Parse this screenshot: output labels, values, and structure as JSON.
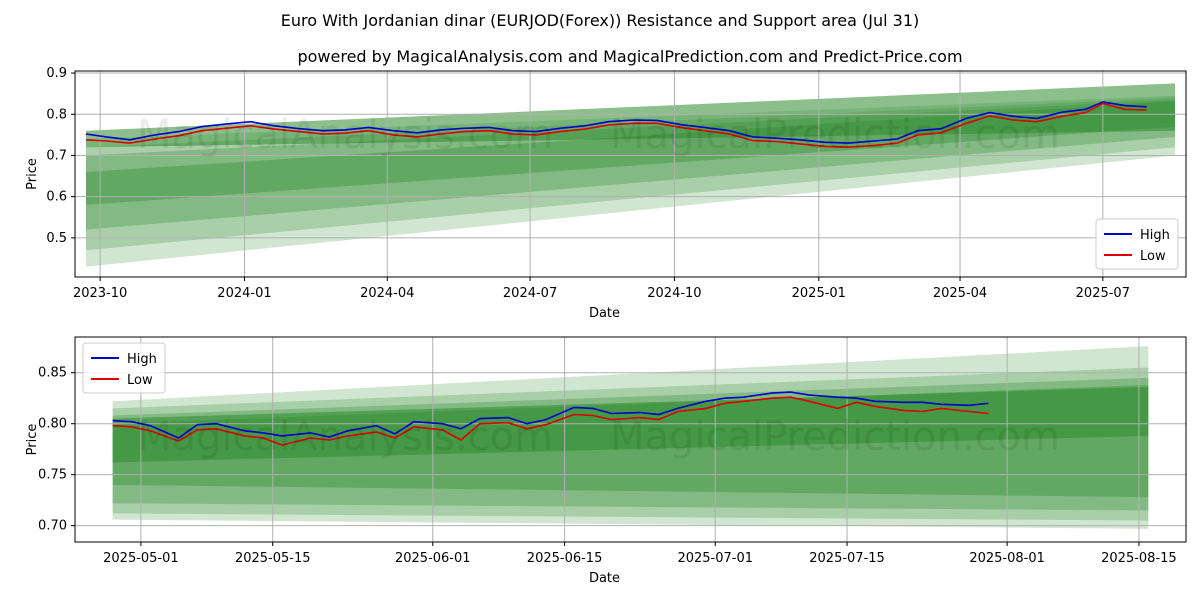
{
  "title": "Euro With Jordanian dinar (EURJOD(Forex)) Resistance and Support area (Jul 31)",
  "subtitle": "powered by MagicalAnalysis.com and MagicalPrediction.com and Predict-Price.com",
  "watermarks": [
    "MagicalAnalysis.com",
    "MagicalPrediction.com"
  ],
  "colors": {
    "high": "#0000cc",
    "low": "#dd0000",
    "band": "#2e8b2e",
    "grid": "#b0b0b0"
  },
  "chart_data": [
    {
      "type": "line",
      "xlabel": "Date",
      "ylabel": "Price",
      "x_range": [
        "2023-09-15",
        "2025-08-23"
      ],
      "ylim": [
        0.405,
        0.905
      ],
      "x_ticks": [
        {
          "date": "2023-10-01",
          "label": "2023-10"
        },
        {
          "date": "2024-01-01",
          "label": "2024-01"
        },
        {
          "date": "2024-04-01",
          "label": "2024-04"
        },
        {
          "date": "2024-07-01",
          "label": "2024-07"
        },
        {
          "date": "2024-10-01",
          "label": "2024-10"
        },
        {
          "date": "2025-01-01",
          "label": "2025-01"
        },
        {
          "date": "2025-04-01",
          "label": "2025-04"
        },
        {
          "date": "2025-07-01",
          "label": "2025-07"
        }
      ],
      "y_ticks": [
        0.5,
        0.6,
        0.7,
        0.8,
        0.9
      ],
      "legend": "lower-right",
      "grid": true,
      "series": [
        {
          "name": "High",
          "x": [
            "2023-09-22",
            "2023-10-05",
            "2023-10-20",
            "2023-11-05",
            "2023-11-20",
            "2023-12-05",
            "2023-12-20",
            "2024-01-05",
            "2024-01-20",
            "2024-02-05",
            "2024-02-20",
            "2024-03-05",
            "2024-03-20",
            "2024-04-05",
            "2024-04-20",
            "2024-05-05",
            "2024-05-20",
            "2024-06-05",
            "2024-06-20",
            "2024-07-05",
            "2024-07-20",
            "2024-08-05",
            "2024-08-20",
            "2024-09-05",
            "2024-09-20",
            "2024-10-05",
            "2024-10-20",
            "2024-11-05",
            "2024-11-20",
            "2024-12-05",
            "2024-12-20",
            "2025-01-05",
            "2025-01-20",
            "2025-02-05",
            "2025-02-20",
            "2025-03-05",
            "2025-03-20",
            "2025-04-05",
            "2025-04-20",
            "2025-05-05",
            "2025-05-20",
            "2025-06-05",
            "2025-06-20",
            "2025-07-01",
            "2025-07-15",
            "2025-07-29"
          ],
          "values": [
            0.752,
            0.745,
            0.738,
            0.75,
            0.758,
            0.77,
            0.776,
            0.782,
            0.772,
            0.765,
            0.76,
            0.762,
            0.768,
            0.76,
            0.755,
            0.762,
            0.766,
            0.768,
            0.76,
            0.758,
            0.766,
            0.772,
            0.782,
            0.786,
            0.785,
            0.775,
            0.768,
            0.76,
            0.745,
            0.742,
            0.738,
            0.732,
            0.73,
            0.735,
            0.74,
            0.76,
            0.765,
            0.79,
            0.804,
            0.795,
            0.79,
            0.805,
            0.812,
            0.83,
            0.821,
            0.818
          ]
        },
        {
          "name": "Low",
          "x": [
            "2023-09-22",
            "2023-10-05",
            "2023-10-20",
            "2023-11-05",
            "2023-11-20",
            "2023-12-05",
            "2023-12-20",
            "2024-01-05",
            "2024-01-20",
            "2024-02-05",
            "2024-02-20",
            "2024-03-05",
            "2024-03-20",
            "2024-04-05",
            "2024-04-20",
            "2024-05-05",
            "2024-05-20",
            "2024-06-05",
            "2024-06-20",
            "2024-07-05",
            "2024-07-20",
            "2024-08-05",
            "2024-08-20",
            "2024-09-05",
            "2024-09-20",
            "2024-10-05",
            "2024-10-20",
            "2024-11-05",
            "2024-11-20",
            "2024-12-05",
            "2024-12-20",
            "2025-01-05",
            "2025-01-20",
            "2025-02-05",
            "2025-02-20",
            "2025-03-05",
            "2025-03-20",
            "2025-04-05",
            "2025-04-20",
            "2025-05-05",
            "2025-05-20",
            "2025-06-05",
            "2025-06-20",
            "2025-07-01",
            "2025-07-15",
            "2025-07-29"
          ],
          "values": [
            0.738,
            0.735,
            0.73,
            0.74,
            0.748,
            0.76,
            0.766,
            0.772,
            0.764,
            0.758,
            0.752,
            0.754,
            0.76,
            0.75,
            0.745,
            0.752,
            0.758,
            0.76,
            0.752,
            0.75,
            0.758,
            0.764,
            0.774,
            0.778,
            0.778,
            0.768,
            0.76,
            0.752,
            0.736,
            0.734,
            0.728,
            0.722,
            0.72,
            0.724,
            0.73,
            0.75,
            0.755,
            0.778,
            0.796,
            0.786,
            0.782,
            0.795,
            0.804,
            0.826,
            0.812,
            0.81
          ]
        }
      ],
      "bands": [
        {
          "x": [
            "2023-09-22",
            "2025-08-16"
          ],
          "upper": [
            0.74,
            0.845
          ],
          "lower": [
            0.43,
            0.7
          ]
        },
        {
          "x": [
            "2023-09-22",
            "2025-08-16"
          ],
          "upper": [
            0.72,
            0.84
          ],
          "lower": [
            0.47,
            0.72
          ]
        },
        {
          "x": [
            "2023-09-22",
            "2025-08-16"
          ],
          "upper": [
            0.7,
            0.835
          ],
          "lower": [
            0.52,
            0.745
          ]
        },
        {
          "x": [
            "2023-09-22",
            "2025-08-16"
          ],
          "upper": [
            0.66,
            0.832
          ],
          "lower": [
            0.58,
            0.77
          ]
        },
        {
          "x": [
            "2023-09-22",
            "2025-08-16"
          ],
          "upper": [
            0.76,
            0.875
          ],
          "lower": [
            0.72,
            0.76
          ]
        }
      ]
    },
    {
      "type": "line",
      "xlabel": "Date",
      "ylabel": "Price",
      "x_range": [
        "2025-04-24",
        "2025-08-20"
      ],
      "ylim": [
        0.684,
        0.885
      ],
      "x_ticks": [
        {
          "date": "2025-05-01",
          "label": "2025-05-01"
        },
        {
          "date": "2025-05-15",
          "label": "2025-05-15"
        },
        {
          "date": "2025-06-01",
          "label": "2025-06-01"
        },
        {
          "date": "2025-06-15",
          "label": "2025-06-15"
        },
        {
          "date": "2025-07-01",
          "label": "2025-07-01"
        },
        {
          "date": "2025-07-15",
          "label": "2025-07-15"
        },
        {
          "date": "2025-08-01",
          "label": "2025-08-01"
        },
        {
          "date": "2025-08-15",
          "label": "2025-08-15"
        }
      ],
      "y_ticks": [
        0.7,
        0.75,
        0.8,
        0.85
      ],
      "legend": "upper-left",
      "grid": true,
      "series": [
        {
          "name": "High",
          "x": [
            "2025-04-28",
            "2025-04-30",
            "2025-05-02",
            "2025-05-05",
            "2025-05-07",
            "2025-05-09",
            "2025-05-12",
            "2025-05-14",
            "2025-05-16",
            "2025-05-19",
            "2025-05-21",
            "2025-05-23",
            "2025-05-26",
            "2025-05-28",
            "2025-05-30",
            "2025-06-02",
            "2025-06-04",
            "2025-06-06",
            "2025-06-09",
            "2025-06-11",
            "2025-06-13",
            "2025-06-16",
            "2025-06-18",
            "2025-06-20",
            "2025-06-23",
            "2025-06-25",
            "2025-06-27",
            "2025-06-30",
            "2025-07-02",
            "2025-07-04",
            "2025-07-07",
            "2025-07-09",
            "2025-07-11",
            "2025-07-14",
            "2025-07-16",
            "2025-07-18",
            "2025-07-21",
            "2025-07-23",
            "2025-07-25",
            "2025-07-28",
            "2025-07-30"
          ],
          "values": [
            0.803,
            0.802,
            0.798,
            0.786,
            0.799,
            0.8,
            0.793,
            0.791,
            0.788,
            0.791,
            0.787,
            0.793,
            0.798,
            0.79,
            0.802,
            0.8,
            0.795,
            0.805,
            0.806,
            0.8,
            0.804,
            0.816,
            0.815,
            0.81,
            0.811,
            0.809,
            0.815,
            0.822,
            0.825,
            0.826,
            0.83,
            0.831,
            0.828,
            0.826,
            0.825,
            0.822,
            0.821,
            0.821,
            0.819,
            0.818,
            0.82
          ]
        },
        {
          "name": "Low",
          "x": [
            "2025-04-28",
            "2025-04-30",
            "2025-05-02",
            "2025-05-05",
            "2025-05-07",
            "2025-05-09",
            "2025-05-12",
            "2025-05-14",
            "2025-05-16",
            "2025-05-19",
            "2025-05-21",
            "2025-05-23",
            "2025-05-26",
            "2025-05-28",
            "2025-05-30",
            "2025-06-02",
            "2025-06-04",
            "2025-06-06",
            "2025-06-09",
            "2025-06-11",
            "2025-06-13",
            "2025-06-16",
            "2025-06-18",
            "2025-06-20",
            "2025-06-23",
            "2025-06-25",
            "2025-06-27",
            "2025-06-30",
            "2025-07-02",
            "2025-07-04",
            "2025-07-07",
            "2025-07-09",
            "2025-07-11",
            "2025-07-14",
            "2025-07-16",
            "2025-07-18",
            "2025-07-21",
            "2025-07-23",
            "2025-07-25",
            "2025-07-28",
            "2025-07-30"
          ],
          "values": [
            0.798,
            0.797,
            0.793,
            0.783,
            0.794,
            0.795,
            0.788,
            0.786,
            0.779,
            0.786,
            0.784,
            0.788,
            0.792,
            0.786,
            0.797,
            0.794,
            0.784,
            0.8,
            0.801,
            0.795,
            0.799,
            0.809,
            0.808,
            0.804,
            0.806,
            0.804,
            0.812,
            0.815,
            0.82,
            0.822,
            0.825,
            0.826,
            0.822,
            0.815,
            0.821,
            0.817,
            0.813,
            0.812,
            0.815,
            0.812,
            0.81
          ]
        }
      ],
      "bands": [
        {
          "x": [
            "2025-04-28",
            "2025-08-16"
          ],
          "upper": [
            0.822,
            0.876
          ],
          "lower": [
            0.706,
            0.697
          ]
        },
        {
          "x": [
            "2025-04-28",
            "2025-08-16"
          ],
          "upper": [
            0.815,
            0.855
          ],
          "lower": [
            0.712,
            0.705
          ]
        },
        {
          "x": [
            "2025-04-28",
            "2025-08-16"
          ],
          "upper": [
            0.808,
            0.845
          ],
          "lower": [
            0.722,
            0.715
          ]
        },
        {
          "x": [
            "2025-04-28",
            "2025-08-16"
          ],
          "upper": [
            0.8,
            0.838
          ],
          "lower": [
            0.74,
            0.728
          ]
        },
        {
          "x": [
            "2025-04-28",
            "2025-08-16"
          ],
          "upper": [
            0.805,
            0.836
          ],
          "lower": [
            0.762,
            0.788
          ]
        }
      ]
    }
  ]
}
